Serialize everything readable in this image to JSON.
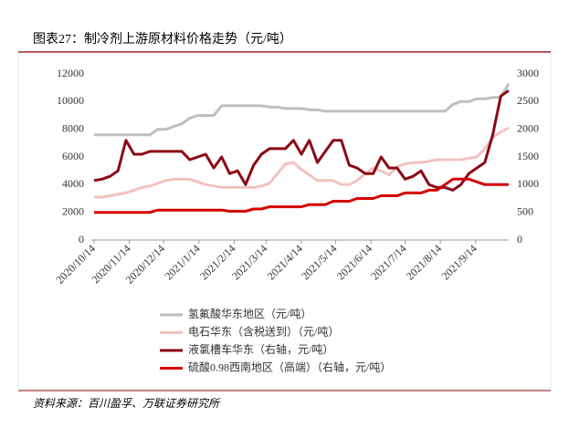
{
  "chart_data": {
    "type": "line",
    "title": "图表27：制冷剂上游原材料价格走势（元/吨）",
    "source": "资料来源：百川盈孚、万联证券研究所",
    "x": [
      "2020/10/14",
      "2020/10/21",
      "2020/10/28",
      "2020/11/4",
      "2020/11/11",
      "2020/11/18",
      "2020/11/25",
      "2020/12/2",
      "2020/12/9",
      "2020/12/16",
      "2020/12/23",
      "2020/12/30",
      "2021/1/6",
      "2021/1/13",
      "2021/1/20",
      "2021/1/27",
      "2021/2/3",
      "2021/2/10",
      "2021/2/17",
      "2021/2/24",
      "2021/3/3",
      "2021/3/10",
      "2021/3/17",
      "2021/3/24",
      "2021/3/31",
      "2021/4/7",
      "2021/4/14",
      "2021/4/21",
      "2021/4/28",
      "2021/5/5",
      "2021/5/12",
      "2021/5/19",
      "2021/5/26",
      "2021/6/2",
      "2021/6/9",
      "2021/6/16",
      "2021/6/23",
      "2021/6/30",
      "2021/7/7",
      "2021/7/14",
      "2021/7/21",
      "2021/7/28",
      "2021/8/4",
      "2021/8/11",
      "2021/8/18",
      "2021/8/25",
      "2021/9/1",
      "2021/9/8",
      "2021/9/15",
      "2021/9/22",
      "2021/9/29",
      "2021/10/6",
      "2021/10/13"
    ],
    "xticks": [
      "2020/10/14",
      "2020/11/14",
      "2020/12/14",
      "2021/1/14",
      "2021/2/14",
      "2021/3/14",
      "2021/4/14",
      "2021/5/14",
      "2021/6/14",
      "2021/7/14",
      "2021/8/14",
      "2021/9/14"
    ],
    "ylim": [
      0,
      12000
    ],
    "yticks": [
      0,
      2000,
      4000,
      6000,
      8000,
      10000,
      12000
    ],
    "y2lim": [
      0,
      3000
    ],
    "y2ticks": [
      0,
      500,
      1000,
      1500,
      2000,
      2500,
      3000
    ],
    "series": [
      {
        "name": "氢氟酸华东地区（元/吨）",
        "color": "#bfbfbf",
        "values": [
          7600,
          7600,
          7600,
          7600,
          7600,
          7600,
          7600,
          7600,
          8000,
          8000,
          8200,
          8400,
          8800,
          9000,
          9000,
          9000,
          9700,
          9700,
          9700,
          9700,
          9700,
          9700,
          9600,
          9600,
          9500,
          9500,
          9500,
          9400,
          9400,
          9300,
          9300,
          9300,
          9300,
          9300,
          9300,
          9300,
          9300,
          9300,
          9300,
          9300,
          9300,
          9300,
          9300,
          9300,
          9300,
          9800,
          10000,
          10000,
          10200,
          10200,
          10300,
          10300,
          11300
        ]
      },
      {
        "name": "电石华东（含税送到）（元/吨）",
        "color": "#f4c1c1",
        "values": [
          3100,
          3100,
          3200,
          3300,
          3400,
          3600,
          3800,
          3900,
          4100,
          4300,
          4400,
          4400,
          4400,
          4200,
          4000,
          3900,
          3800,
          3800,
          3800,
          3800,
          3800,
          3900,
          4100,
          4800,
          5500,
          5600,
          5100,
          4700,
          4300,
          4300,
          4300,
          4000,
          4000,
          4300,
          4800,
          5200,
          5000,
          4700,
          5300,
          5500,
          5600,
          5600,
          5700,
          5800,
          5800,
          5800,
          5800,
          5900,
          6000,
          6600,
          7400,
          7800,
          8100
        ]
      },
      {
        "name": "液氯槽车华东（右轴，元/吨）",
        "color": "#8b0a14",
        "axis": "y2",
        "values": [
          1075,
          1100,
          1150,
          1250,
          1800,
          1550,
          1550,
          1600,
          1600,
          1600,
          1600,
          1600,
          1450,
          1500,
          1550,
          1300,
          1500,
          1200,
          1250,
          1000,
          1350,
          1550,
          1650,
          1650,
          1650,
          1800,
          1550,
          1800,
          1400,
          1600,
          1800,
          1800,
          1350,
          1300,
          1200,
          1200,
          1500,
          1300,
          1300,
          1100,
          1150,
          1250,
          1000,
          950,
          950,
          900,
          1000,
          1200,
          1300,
          1400,
          1900,
          2600,
          2700
        ]
      },
      {
        "name": "硫酸0.98西南地区（高端）（右轴，元/吨）",
        "color": "#d60000",
        "axis": "y2",
        "values": [
          500,
          500,
          500,
          500,
          500,
          500,
          500,
          500,
          540,
          540,
          540,
          540,
          540,
          540,
          540,
          540,
          540,
          520,
          520,
          520,
          560,
          560,
          600,
          600,
          600,
          600,
          600,
          640,
          640,
          640,
          700,
          700,
          700,
          750,
          750,
          750,
          800,
          800,
          800,
          850,
          850,
          850,
          900,
          900,
          1000,
          1100,
          1100,
          1100,
          1050,
          1000,
          1000,
          1000,
          1000
        ]
      }
    ]
  }
}
